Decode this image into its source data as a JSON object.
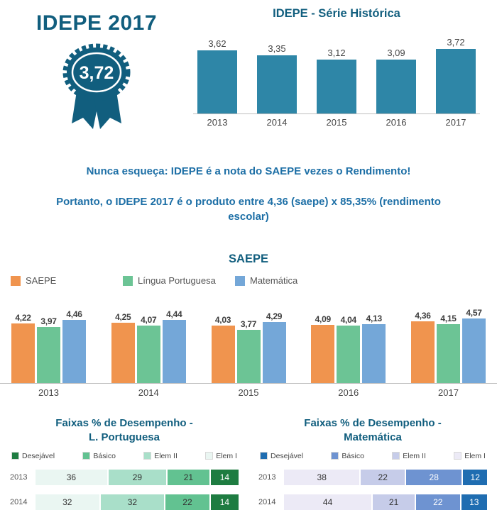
{
  "colors": {
    "heading": "#115e7e",
    "note": "#1d6fa6",
    "axis_text": "#454545",
    "baseline": "#bfbfbf",
    "medal": "#115e7e"
  },
  "header": {
    "title": "IDEPE 2017",
    "badge_value": "3,72"
  },
  "notes": {
    "line1": "Nunca esqueça: IDEPE é a nota do SAEPE vezes o Rendimento!",
    "line2": "Portanto, o IDEPE 2017 é o produto entre 4,36 (saepe) x 85,35% (rendimento escolar)"
  },
  "chart_data": [
    {
      "id": "idepe_serie_historica",
      "type": "bar",
      "title": "IDEPE - Série Histórica",
      "categories": [
        "2013",
        "2014",
        "2015",
        "2016",
        "2017"
      ],
      "values": [
        3.62,
        3.35,
        3.12,
        3.09,
        3.72
      ],
      "value_labels": [
        "3,62",
        "3,35",
        "3,12",
        "3,09",
        "3,72"
      ],
      "bar_color": "#2e86a7",
      "ylim": [
        0,
        4
      ],
      "grid": false,
      "legend_position": "none"
    },
    {
      "id": "saepe",
      "type": "bar",
      "title": "SAEPE",
      "categories": [
        "2013",
        "2014",
        "2015",
        "2016",
        "2017"
      ],
      "series": [
        {
          "name": "SAEPE",
          "color": "#f0944e",
          "values": [
            4.22,
            4.25,
            4.03,
            4.09,
            4.36
          ],
          "value_labels": [
            "4,22",
            "4,25",
            "4,03",
            "4,09",
            "4,36"
          ]
        },
        {
          "name": "Língua Portuguesa",
          "color": "#6cc495",
          "values": [
            3.97,
            4.07,
            3.77,
            4.04,
            4.15
          ],
          "value_labels": [
            "3,97",
            "4,07",
            "3,77",
            "4,04",
            "4,15"
          ]
        },
        {
          "name": "Matemática",
          "color": "#74a7d8",
          "values": [
            4.46,
            4.44,
            4.29,
            4.13,
            4.57
          ],
          "value_labels": [
            "4,46",
            "4,44",
            "4,29",
            "4,13",
            "4,57"
          ]
        }
      ],
      "ylim": [
        0,
        5
      ],
      "grid": false,
      "legend_position": "top"
    },
    {
      "id": "faixas_lingua_portuguesa",
      "type": "stacked-bar-horizontal",
      "title": "Faixas % de Desempenho -\nL. Portuguesa",
      "legend_order": [
        "Desejável",
        "Básico",
        "Elem II",
        "Elem I"
      ],
      "band_colors": {
        "Desejável": "#1e7c41",
        "Básico": "#62c291",
        "Elem II": "#a9dfc9",
        "Elem I": "#eaf6f2"
      },
      "segment_order": [
        "Elem I",
        "Elem II",
        "Básico",
        "Desejável"
      ],
      "rows": [
        {
          "year": "2013",
          "values": [
            36,
            29,
            21,
            14
          ]
        },
        {
          "year": "2014",
          "values": [
            32,
            32,
            22,
            14
          ]
        }
      ],
      "xlim": [
        0,
        100
      ]
    },
    {
      "id": "faixas_matematica",
      "type": "stacked-bar-horizontal",
      "title": "Faixas % de Desempenho -\nMatemática",
      "legend_order": [
        "Desejável",
        "Básico",
        "Elem II",
        "Elem I"
      ],
      "band_colors": {
        "Desejável": "#1f6db1",
        "Básico": "#6e93d1",
        "Elem II": "#c6cce9",
        "Elem I": "#eceaf6"
      },
      "segment_order": [
        "Elem I",
        "Elem II",
        "Básico",
        "Desejável"
      ],
      "rows": [
        {
          "year": "2013",
          "values": [
            38,
            22,
            28,
            12
          ]
        },
        {
          "year": "2014",
          "values": [
            44,
            21,
            22,
            13
          ]
        }
      ],
      "xlim": [
        0,
        100
      ]
    }
  ]
}
